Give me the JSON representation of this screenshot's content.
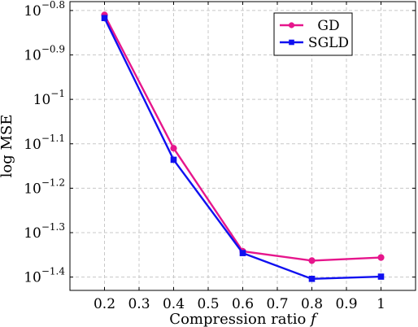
{
  "chart_data": {
    "type": "line",
    "xlabel": "Compression ratio f",
    "ylabel": "log MSE",
    "xlim": [
      0.1,
      1.1
    ],
    "ylim": [
      -1.43,
      -0.78
    ],
    "y_scale": "log10",
    "grid": true,
    "legend_position": "top-right",
    "x_ticks": [
      0.2,
      0.3,
      0.4,
      0.5,
      0.6,
      0.7,
      0.8,
      0.9,
      1
    ],
    "x_tick_labels": [
      "0.2",
      "0.3",
      "0.4",
      "0.5",
      "0.6",
      "0.7",
      "0.8",
      "0.9",
      "1"
    ],
    "y_ticks": [
      -0.8,
      -0.9,
      -1.0,
      -1.1,
      -1.2,
      -1.3,
      -1.4
    ],
    "y_tick_base": "10",
    "y_tick_exponents": [
      "−0.8",
      "−0.9",
      "−1",
      "−1.1",
      "−1.2",
      "−1.3",
      "−1.4"
    ],
    "x": [
      0.2,
      0.4,
      0.6,
      0.8,
      1.0
    ],
    "series": [
      {
        "name": "GD",
        "values": [
          -0.81,
          -1.11,
          -1.342,
          -1.363,
          -1.356
        ],
        "color": "#e6168c",
        "marker": "circle"
      },
      {
        "name": "SGLD",
        "values": [
          -0.817,
          -1.136,
          -1.346,
          -1.404,
          -1.399
        ],
        "color": "#1010f0",
        "marker": "square"
      }
    ]
  }
}
